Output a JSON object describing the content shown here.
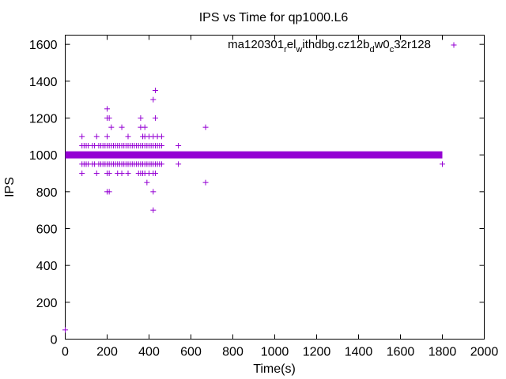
{
  "chart_data": {
    "type": "scatter",
    "title": "IPS vs Time for qp1000.L6",
    "xlabel": "Time(s)",
    "ylabel": "IPS",
    "xlim": [
      0,
      2000
    ],
    "ylim": [
      0,
      1650
    ],
    "xticks": [
      0,
      200,
      400,
      600,
      800,
      1000,
      1200,
      1400,
      1600,
      1800,
      2000
    ],
    "yticks": [
      0,
      200,
      400,
      600,
      800,
      1000,
      1200,
      1400,
      1600
    ],
    "grid": false,
    "legend_position": "top-right",
    "marker": "plus",
    "series": [
      {
        "name": "ma120301_rel_withdbg.cz12b_dw0_c32r128",
        "color": "#9400d3",
        "baseline": {
          "y": 1000,
          "x_range": [
            0,
            1800
          ]
        },
        "points": [
          [
            0,
            50
          ],
          [
            1800,
            950
          ],
          [
            80,
            1100
          ],
          [
            80,
            1050
          ],
          [
            80,
            950
          ],
          [
            80,
            900
          ],
          [
            90,
            1050
          ],
          [
            90,
            950
          ],
          [
            100,
            1050
          ],
          [
            100,
            950
          ],
          [
            110,
            1050
          ],
          [
            110,
            950
          ],
          [
            130,
            1050
          ],
          [
            130,
            950
          ],
          [
            140,
            1050
          ],
          [
            140,
            950
          ],
          [
            150,
            1100
          ],
          [
            150,
            900
          ],
          [
            160,
            1050
          ],
          [
            160,
            950
          ],
          [
            170,
            1050
          ],
          [
            170,
            950
          ],
          [
            180,
            1050
          ],
          [
            180,
            950
          ],
          [
            190,
            1050
          ],
          [
            190,
            950
          ],
          [
            200,
            1250
          ],
          [
            200,
            1200
          ],
          [
            200,
            1100
          ],
          [
            200,
            1050
          ],
          [
            200,
            950
          ],
          [
            200,
            900
          ],
          [
            200,
            800
          ],
          [
            210,
            1200
          ],
          [
            210,
            1050
          ],
          [
            210,
            950
          ],
          [
            210,
            900
          ],
          [
            210,
            800
          ],
          [
            220,
            1150
          ],
          [
            220,
            1050
          ],
          [
            220,
            950
          ],
          [
            230,
            1050
          ],
          [
            230,
            950
          ],
          [
            240,
            1050
          ],
          [
            240,
            950
          ],
          [
            250,
            1050
          ],
          [
            250,
            950
          ],
          [
            250,
            900
          ],
          [
            260,
            1050
          ],
          [
            260,
            950
          ],
          [
            270,
            1150
          ],
          [
            270,
            1050
          ],
          [
            270,
            950
          ],
          [
            270,
            900
          ],
          [
            280,
            1050
          ],
          [
            280,
            950
          ],
          [
            290,
            1050
          ],
          [
            290,
            950
          ],
          [
            300,
            1100
          ],
          [
            300,
            1050
          ],
          [
            300,
            950
          ],
          [
            300,
            900
          ],
          [
            310,
            1050
          ],
          [
            310,
            950
          ],
          [
            320,
            1050
          ],
          [
            320,
            950
          ],
          [
            330,
            1050
          ],
          [
            330,
            950
          ],
          [
            340,
            1050
          ],
          [
            340,
            950
          ],
          [
            350,
            1050
          ],
          [
            350,
            950
          ],
          [
            350,
            900
          ],
          [
            360,
            1200
          ],
          [
            360,
            1150
          ],
          [
            360,
            1050
          ],
          [
            360,
            950
          ],
          [
            360,
            900
          ],
          [
            370,
            1100
          ],
          [
            370,
            1050
          ],
          [
            370,
            950
          ],
          [
            370,
            900
          ],
          [
            380,
            1150
          ],
          [
            380,
            1100
          ],
          [
            380,
            1050
          ],
          [
            380,
            950
          ],
          [
            380,
            900
          ],
          [
            390,
            1050
          ],
          [
            390,
            950
          ],
          [
            390,
            850
          ],
          [
            400,
            1100
          ],
          [
            400,
            1050
          ],
          [
            400,
            950
          ],
          [
            400,
            900
          ],
          [
            410,
            1050
          ],
          [
            410,
            950
          ],
          [
            420,
            1300
          ],
          [
            420,
            1100
          ],
          [
            420,
            1050
          ],
          [
            420,
            950
          ],
          [
            420,
            900
          ],
          [
            420,
            800
          ],
          [
            420,
            700
          ],
          [
            430,
            1350
          ],
          [
            430,
            1200
          ],
          [
            430,
            1050
          ],
          [
            430,
            950
          ],
          [
            430,
            900
          ],
          [
            440,
            1100
          ],
          [
            440,
            1050
          ],
          [
            440,
            950
          ],
          [
            450,
            1050
          ],
          [
            450,
            950
          ],
          [
            460,
            1100
          ],
          [
            460,
            1050
          ],
          [
            460,
            950
          ],
          [
            540,
            1050
          ],
          [
            540,
            950
          ],
          [
            670,
            1150
          ],
          [
            670,
            850
          ]
        ]
      }
    ]
  },
  "legend": {
    "main1": "ma120301",
    "sub1": "r",
    "main2": "el",
    "sub2": "w",
    "main3": "ithdbg.cz12b",
    "sub3": "d",
    "main4": "w0",
    "sub4": "c",
    "main5": "32r128"
  }
}
